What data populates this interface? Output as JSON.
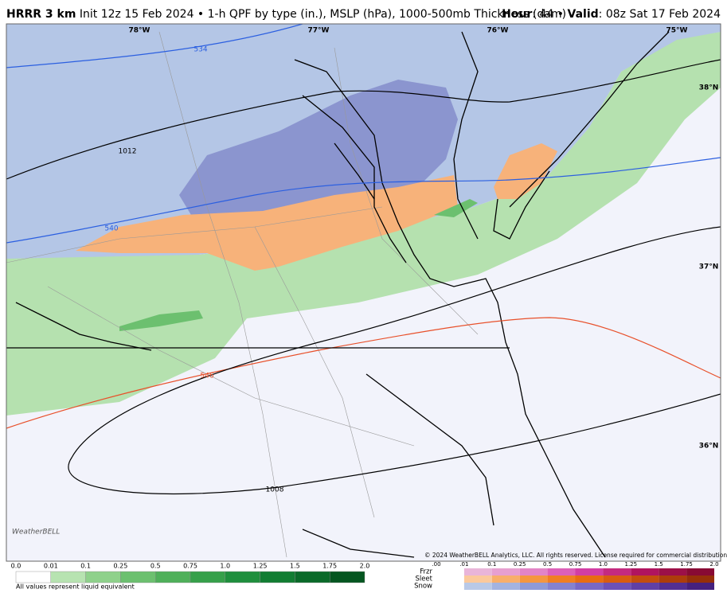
{
  "header": {
    "model": "HRRR 3 km",
    "description": "Init 12z 15 Feb 2024 • 1-h QPF by type (in.), MSLP (hPa), 1000-500mb Thickness (dam)",
    "hour_label": "Hour",
    "hour_value": ": 44 •",
    "valid_label": "Valid",
    "valid_value": ": 08z Sat 17 Feb 2024"
  },
  "map": {
    "longitude_labels": [
      "78°W",
      "77°W",
      "76°W",
      "75°W"
    ],
    "latitude_labels": [
      "38°N",
      "37°N",
      "36°N"
    ],
    "thickness_labels": [
      "534",
      "540",
      "546"
    ],
    "pressure_labels": [
      "1012",
      "1008"
    ],
    "logo": "WeatherBELL",
    "copyright": "© 2024 WeatherBELL Analytics, LLC. All rights reserved. License required for commercial distribution."
  },
  "legend": {
    "rain": {
      "ticks": [
        "0.0",
        "0.01",
        "0.1",
        "0.25",
        "0.5",
        "0.75",
        "1.0",
        "1.25",
        "1.5",
        "1.75",
        "2.0"
      ],
      "colors": [
        "#ffffff",
        "#b7e3b1",
        "#8fd18b",
        "#6cc06f",
        "#4fb05a",
        "#36a04a",
        "#1f8f3d",
        "#117d32",
        "#0a6a29",
        "#055620",
        "#024318"
      ],
      "note": "All values represent liquid equivalent"
    },
    "mixed": {
      "types": [
        "Frzr",
        "Sleet",
        "Snow"
      ],
      "ticks": [
        ".00",
        ".01",
        "0.1",
        "0.25",
        "0.5",
        "0.75",
        "1.0",
        "1.25",
        "1.5",
        "1.75",
        "2.0"
      ],
      "colors": [
        [
          "#ffffff",
          "#e9b5d9",
          "#e79fd0",
          "#e284c6",
          "#dc60b7",
          "#d23ea4",
          "#c42a7f",
          "#b0145f",
          "#9c1048",
          "#880a34",
          "#6e0a1e"
        ],
        [
          "#ffffff",
          "#fbc99c",
          "#f8ae6b",
          "#f5963f",
          "#f07e22",
          "#e86c13",
          "#d95c10",
          "#c44d0e",
          "#ad3d0b",
          "#962f09",
          "#7a2307"
        ],
        [
          "#ffffff",
          "#b9c9e7",
          "#a3b3e0",
          "#8f9ad6",
          "#8582cf",
          "#7868c5",
          "#6c51b8",
          "#6040a6",
          "#522f93",
          "#45217f",
          "#36146a"
        ]
      ]
    }
  }
}
